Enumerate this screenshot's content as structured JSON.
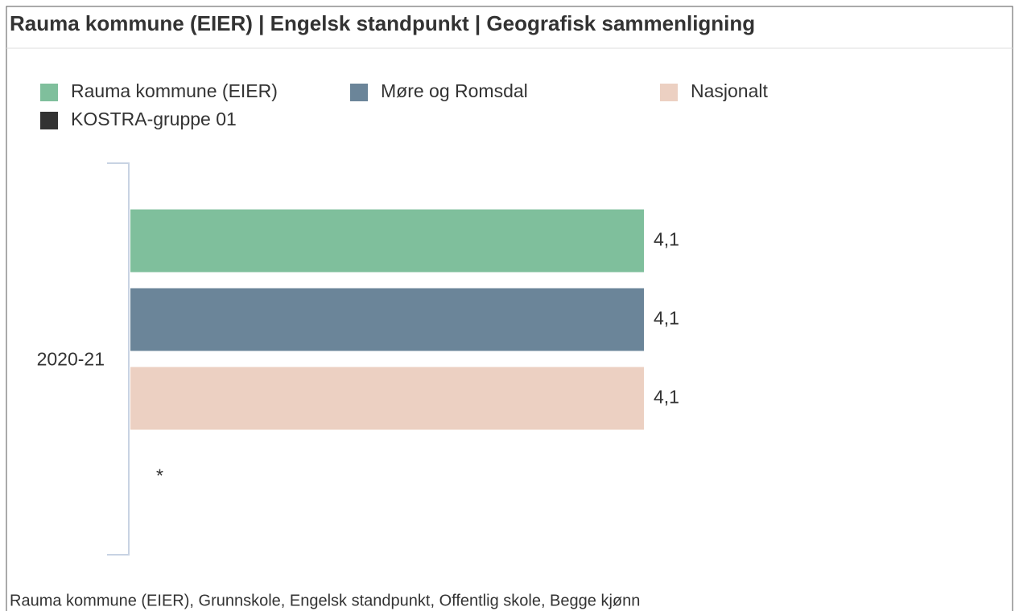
{
  "chart_data": {
    "type": "bar",
    "orientation": "horizontal",
    "title": "Rauma kommune (EIER) | Engelsk standpunkt | Geografisk sammenligning",
    "categories": [
      "2020-21"
    ],
    "series": [
      {
        "name": "Rauma kommune (EIER)",
        "color": "#7fbf9c",
        "values": [
          4.1
        ],
        "value_labels": [
          "4,1"
        ]
      },
      {
        "name": "Møre og Romsdal",
        "color": "#6b8599",
        "values": [
          4.1
        ],
        "value_labels": [
          "4,1"
        ]
      },
      {
        "name": "Nasjonalt",
        "color": "#ecd0c2",
        "values": [
          4.1
        ],
        "value_labels": [
          "4,1"
        ]
      },
      {
        "name": "KOSTRA-gruppe 01",
        "color": "#333333",
        "values": [
          null
        ],
        "value_labels": [
          "*"
        ]
      }
    ],
    "xlim": [
      0,
      4.1
    ],
    "legend": "top-left",
    "footnote": "Rauma kommune (EIER), Grunnskole, Engelsk standpunkt, Offentlig skole, Begge kjønn"
  }
}
